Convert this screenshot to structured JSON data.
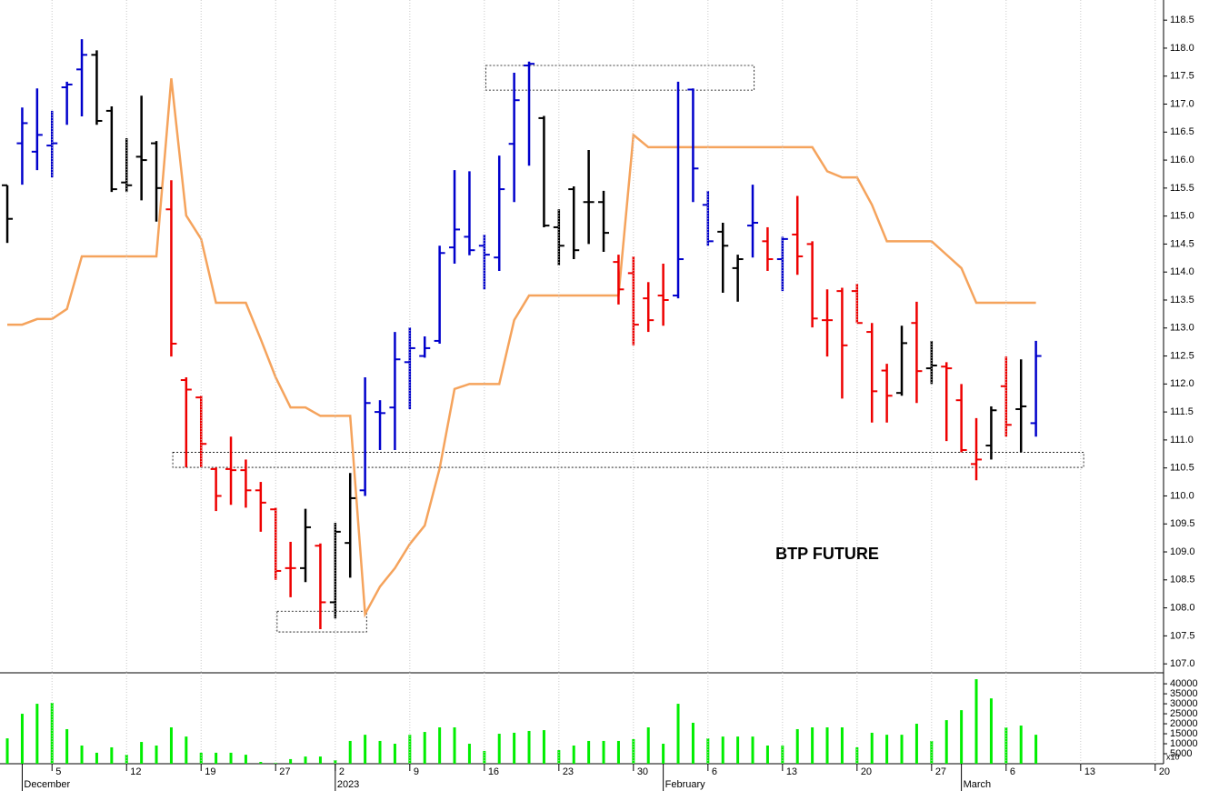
{
  "chart_data": [
    {
      "type": "ohlc",
      "title": "BTP FUTURE",
      "open": [
        115.55,
        116.3,
        116.15,
        116.26,
        117.3,
        117.62,
        117.88,
        116.88,
        115.6,
        116.06,
        116.3,
        115.12,
        112.07,
        111.76,
        110.48,
        110.48,
        110.46,
        110.1,
        109.76,
        108.71,
        108.71,
        109.11,
        108.1,
        109.16,
        110.1,
        111.5,
        111.58,
        112.39,
        112.5,
        112.77,
        114.44,
        114.63,
        114.47,
        114.26,
        116.29,
        117.69,
        116.75,
        114.8,
        115.48,
        115.25,
        115.25,
        114.18,
        113.98,
        113.53,
        113.58,
        113.58,
        117.26,
        115.2,
        114.72,
        114.07,
        114.83,
        114.55,
        114.23,
        114.67,
        114.5,
        113.14,
        113.66,
        113.66,
        112.93,
        112.24,
        111.84,
        113.09,
        112.28,
        112.31,
        111.71,
        110.57,
        110.9,
        111.96,
        111.55,
        111.3
      ],
      "high": [
        115.55,
        116.94,
        117.28,
        116.88,
        117.4,
        118.16,
        117.96,
        116.96,
        116.39,
        117.15,
        116.34,
        115.64,
        112.12,
        111.79,
        110.51,
        111.06,
        110.65,
        110.25,
        109.79,
        109.18,
        109.77,
        109.15,
        109.52,
        110.41,
        112.12,
        111.71,
        112.93,
        113.01,
        112.85,
        114.47,
        115.82,
        115.8,
        114.67,
        116.08,
        117.56,
        117.76,
        116.79,
        115.12,
        115.53,
        116.18,
        115.45,
        114.31,
        114.28,
        113.82,
        114.15,
        117.4,
        117.28,
        115.45,
        114.88,
        114.31,
        115.56,
        114.8,
        114.63,
        115.36,
        114.55,
        113.69,
        113.72,
        113.79,
        113.09,
        112.36,
        113.04,
        113.47,
        112.77,
        112.39,
        112.0,
        111.39,
        111.6,
        112.49,
        112.44,
        112.77
      ],
      "low": [
        114.52,
        115.56,
        115.82,
        115.69,
        116.63,
        116.78,
        116.63,
        115.43,
        115.43,
        115.28,
        114.9,
        112.49,
        110.51,
        110.51,
        109.73,
        109.84,
        109.79,
        109.36,
        108.5,
        108.19,
        108.46,
        107.62,
        107.81,
        108.54,
        110.0,
        110.82,
        110.82,
        111.55,
        112.47,
        112.72,
        114.15,
        114.3,
        113.69,
        114.02,
        115.25,
        115.9,
        114.8,
        114.12,
        114.23,
        114.5,
        114.36,
        113.42,
        112.69,
        112.93,
        113.04,
        113.53,
        115.25,
        114.47,
        113.63,
        113.47,
        114.26,
        114.02,
        113.66,
        113.95,
        113.01,
        112.49,
        111.74,
        113.09,
        111.31,
        111.31,
        111.79,
        111.66,
        112.0,
        110.98,
        110.78,
        110.28,
        110.65,
        111.06,
        110.78,
        111.06
      ],
      "close": [
        114.95,
        116.66,
        116.45,
        116.3,
        117.35,
        117.88,
        116.7,
        115.48,
        115.55,
        116.0,
        115.5,
        112.72,
        111.9,
        110.93,
        110.0,
        110.46,
        110.1,
        109.88,
        108.66,
        108.71,
        109.44,
        108.1,
        109.36,
        109.96,
        111.66,
        111.48,
        112.44,
        112.64,
        112.64,
        114.34,
        114.76,
        114.39,
        114.31,
        115.48,
        117.07,
        117.72,
        114.83,
        114.47,
        114.39,
        115.25,
        114.7,
        113.69,
        113.06,
        113.14,
        113.5,
        114.23,
        115.85,
        114.55,
        114.47,
        114.23,
        114.88,
        114.23,
        114.59,
        114.28,
        113.17,
        113.14,
        112.69,
        113.09,
        111.87,
        111.79,
        112.73,
        112.23,
        112.33,
        112.28,
        110.82,
        110.65,
        111.53,
        111.27,
        111.6,
        112.5
      ],
      "colors": [
        "#000000",
        "#0000cc",
        "#0000cc",
        "#0000cc",
        "#0000cc",
        "#0000cc",
        "#000000",
        "#000000",
        "#000000",
        "#000000",
        "#000000",
        "#ee0000",
        "#ee0000",
        "#ee0000",
        "#ee0000",
        "#ee0000",
        "#ee0000",
        "#ee0000",
        "#ee0000",
        "#ee0000",
        "#000000",
        "#ee0000",
        "#000000",
        "#000000",
        "#0000cc",
        "#0000cc",
        "#0000cc",
        "#0000cc",
        "#0000cc",
        "#0000cc",
        "#0000cc",
        "#0000cc",
        "#0000cc",
        "#0000cc",
        "#0000cc",
        "#0000cc",
        "#000000",
        "#000000",
        "#000000",
        "#000000",
        "#000000",
        "#ee0000",
        "#ee0000",
        "#ee0000",
        "#ee0000",
        "#0000cc",
        "#0000cc",
        "#0000cc",
        "#000000",
        "#000000",
        "#0000cc",
        "#ee0000",
        "#0000cc",
        "#ee0000",
        "#ee0000",
        "#ee0000",
        "#ee0000",
        "#ee0000",
        "#ee0000",
        "#ee0000",
        "#000000",
        "#ee0000",
        "#000000",
        "#ee0000",
        "#ee0000",
        "#ee0000",
        "#000000",
        "#ee0000",
        "#000000",
        "#0000cc"
      ],
      "line": {
        "color": "#f5a35c",
        "values": [
          113.06,
          113.06,
          113.16,
          113.16,
          113.34,
          114.28,
          114.28,
          114.28,
          114.28,
          114.28,
          114.28,
          117.46,
          115.01,
          114.59,
          113.45,
          113.45,
          113.45,
          112.8,
          112.12,
          111.58,
          111.58,
          111.43,
          111.43,
          111.43,
          107.89,
          108.38,
          108.71,
          109.14,
          109.47,
          110.49,
          111.91,
          112.0,
          112.0,
          112.0,
          113.14,
          113.58,
          113.58,
          113.58,
          113.58,
          113.58,
          113.58,
          113.58,
          116.45,
          116.23,
          116.23,
          116.23,
          116.23,
          116.23,
          116.23,
          116.23,
          116.23,
          116.23,
          116.23,
          116.23,
          116.23,
          115.8,
          115.69,
          115.69,
          115.2,
          114.55,
          114.55,
          114.55,
          114.55,
          114.31,
          114.07,
          113.45,
          113.45,
          113.45,
          113.45,
          113.45
        ]
      },
      "zones": [
        {
          "x": [
            32.1,
            50.1
          ],
          "y": [
            117.25,
            117.69
          ]
        },
        {
          "x": [
            11.1,
            72.2
          ],
          "y": [
            110.51,
            110.78
          ]
        },
        {
          "x": [
            18.1,
            24.1
          ],
          "y": [
            107.57,
            107.94
          ]
        }
      ],
      "xlim": [
        -0.49,
        77.56
      ],
      "ylim": [
        106.84,
        118.86
      ],
      "yticks": [
        {
          "value": 107,
          "label": "107.0"
        },
        107.5,
        {
          "value": 108,
          "label": "108.0"
        },
        108.5,
        {
          "value": 109,
          "label": "109.0"
        },
        109.5,
        {
          "value": 110,
          "label": "110.0"
        },
        110.5,
        {
          "value": 111,
          "label": "111.0"
        },
        111.5,
        {
          "value": 112,
          "label": "112.0"
        },
        112.5,
        {
          "value": 113,
          "label": "113.0"
        },
        113.5,
        {
          "value": 114,
          "label": "114.0"
        },
        114.5,
        {
          "value": 115,
          "label": "115.0"
        },
        115.5,
        {
          "value": 116,
          "label": "116.0"
        },
        116.5,
        {
          "value": 117,
          "label": "117.0"
        },
        117.5,
        {
          "value": 118,
          "label": "118.0"
        },
        118.5
      ],
      "grid": "x"
    },
    {
      "type": "bar",
      "color": "#00ee00",
      "values": [
        12700,
        25000,
        30000,
        30500,
        17300,
        9100,
        5500,
        8200,
        4500,
        10900,
        9100,
        18200,
        13600,
        5500,
        5500,
        5500,
        4500,
        900,
        500,
        2300,
        3600,
        3600,
        1800,
        11400,
        14500,
        11400,
        10000,
        14500,
        15900,
        18200,
        18200,
        10000,
        6400,
        15000,
        15500,
        16400,
        16800,
        6800,
        9100,
        11400,
        11400,
        11400,
        12300,
        18200,
        10000,
        30000,
        20500,
        12700,
        13600,
        13600,
        13600,
        9100,
        9100,
        17300,
        18200,
        18200,
        18200,
        8200,
        15500,
        14500,
        14500,
        20000,
        11400,
        21800,
        26800,
        42300,
        32700,
        18200,
        19100,
        14500
      ],
      "xlim": [
        -0.49,
        77.56
      ],
      "ylim": [
        0,
        45500
      ],
      "yticks": [
        5000,
        10000,
        15000,
        20000,
        25000,
        30000,
        35000,
        40000
      ],
      "axis_note": "x10",
      "xticks": [
        {
          "value": 3,
          "label": "5"
        },
        {
          "value": 8,
          "label": "12"
        },
        {
          "value": 13,
          "label": "19"
        },
        {
          "value": 18,
          "label": "27"
        },
        {
          "value": 22,
          "label": "2"
        },
        {
          "value": 27,
          "label": "9"
        },
        {
          "value": 32,
          "label": "16"
        },
        {
          "value": 37,
          "label": "23"
        },
        {
          "value": 42,
          "label": "30"
        },
        {
          "value": 47,
          "label": "6"
        },
        {
          "value": 52,
          "label": "13"
        },
        {
          "value": 57,
          "label": "20"
        },
        {
          "value": 62,
          "label": "27"
        },
        {
          "value": 67,
          "label": "6"
        },
        {
          "value": 72,
          "label": "13"
        },
        {
          "value": 77,
          "label": "20"
        }
      ],
      "month_ticks": [
        {
          "value": 1,
          "label": "December"
        },
        {
          "value": 22,
          "label": "2023"
        },
        {
          "value": 44,
          "label": "February"
        },
        {
          "value": 64,
          "label": "March"
        }
      ],
      "grid": "x"
    }
  ]
}
